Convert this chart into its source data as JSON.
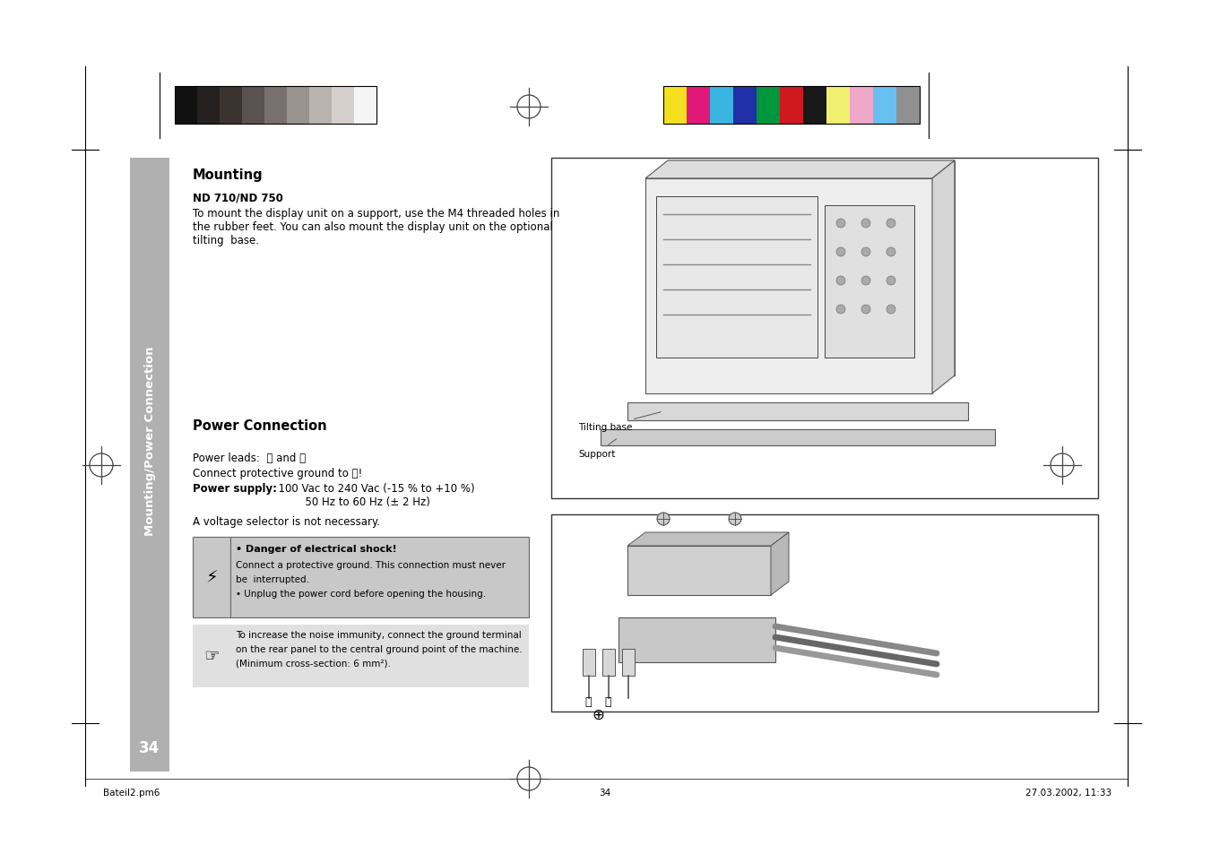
{
  "page_bg": "#ffffff",
  "page_width": 13.51,
  "page_height": 9.54,
  "sidebar_color": "#b0b0b0",
  "sidebar_text": "Mounting/Power Connection",
  "grayscale_swatches": [
    "#111111",
    "#252120",
    "#3a3330",
    "#5a5250",
    "#787070",
    "#9a9490",
    "#bab4b0",
    "#d5d0cc",
    "#f5f5f5"
  ],
  "color_swatches": [
    "#f5e020",
    "#e0187a",
    "#3ab4e0",
    "#2030a8",
    "#00963c",
    "#d01820",
    "#181818",
    "#f0f070",
    "#f0a8c8",
    "#68c0f0",
    "#909090"
  ],
  "title_mounting": "Mounting",
  "subtitle_nd": "ND 710/ND 750",
  "body_text_1a": "To mount the display unit on a support, use the M4 threaded holes in",
  "body_text_1b": "the rubber feet. You can also mount the display unit on the optional",
  "body_text_1c": "tilting  base.",
  "section2_title": "Power Connection",
  "power_text1": "Power leads:  Ⓛ and Ⓝ",
  "power_text2": "Connect protective ground to ⓘ!",
  "power_supply_label": "Power supply:",
  "power_supply_val1": "  100 Vac to 240 Vac (-15 % to +10 %)",
  "power_supply_val2": "          50 Hz to 60 Hz (± 2 Hz)",
  "voltage_text": "A voltage selector is not necessary.",
  "danger_title": "• Danger of electrical shock!",
  "danger_body1": "Connect a protective ground. This connection must never",
  "danger_body2": "be  interrupted.",
  "danger_body3": "• Unplug the power cord before opening the housing.",
  "note_body1": "To increase the noise immunity, connect the ground terminal",
  "note_body2": "on the rear panel to the central ground point of the machine.",
  "note_body3": "(Minimum cross-section: 6 mm²).",
  "page_number": "34",
  "footer_left": "Bateil2.pm6",
  "footer_center": "34",
  "footer_right": "27.03.2002, 11:33",
  "danger_bg": "#c8c8c8",
  "note_bg": "#e0e0e0"
}
